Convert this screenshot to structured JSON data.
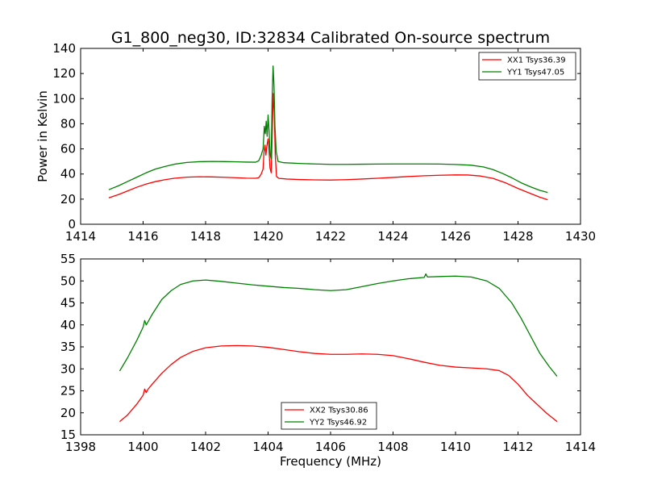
{
  "chart_data": [
    {
      "type": "line",
      "title": "G1_800_neg30, ID:32834 Calibrated On-source spectrum",
      "xlabel": "",
      "ylabel": "Power in Kelvin",
      "xlim": [
        1414,
        1430
      ],
      "ylim": [
        0,
        140
      ],
      "xticks": [
        1414,
        1416,
        1418,
        1420,
        1422,
        1424,
        1426,
        1428,
        1430
      ],
      "yticks": [
        0,
        20,
        40,
        60,
        80,
        100,
        120,
        140
      ],
      "grid": false,
      "legend": "top-right",
      "series": [
        {
          "name": "XX1 Tsys36.39",
          "color": "#ff0000",
          "points": [
            [
              1414.9,
              21
            ],
            [
              1415.2,
              23.5
            ],
            [
              1415.5,
              26.5
            ],
            [
              1415.8,
              29.5
            ],
            [
              1416.1,
              32
            ],
            [
              1416.4,
              34
            ],
            [
              1416.7,
              35.5
            ],
            [
              1417.0,
              36.6
            ],
            [
              1417.4,
              37.5
            ],
            [
              1417.8,
              37.8
            ],
            [
              1418.2,
              37.7
            ],
            [
              1418.6,
              37.4
            ],
            [
              1419.0,
              37
            ],
            [
              1419.3,
              36.7
            ],
            [
              1419.6,
              36.6
            ],
            [
              1419.7,
              37
            ],
            [
              1419.78,
              40
            ],
            [
              1419.84,
              44
            ],
            [
              1419.87,
              58
            ],
            [
              1419.9,
              63
            ],
            [
              1419.93,
              55
            ],
            [
              1419.96,
              62
            ],
            [
              1420.0,
              68
            ],
            [
              1420.03,
              60
            ],
            [
              1420.06,
              45
            ],
            [
              1420.1,
              41
            ],
            [
              1420.14,
              80
            ],
            [
              1420.17,
              104
            ],
            [
              1420.2,
              88
            ],
            [
              1420.23,
              55
            ],
            [
              1420.27,
              38
            ],
            [
              1420.35,
              36.5
            ],
            [
              1420.6,
              36
            ],
            [
              1421.0,
              35.6
            ],
            [
              1421.5,
              35.3
            ],
            [
              1422.0,
              35.2
            ],
            [
              1422.5,
              35.5
            ],
            [
              1423.0,
              36
            ],
            [
              1423.5,
              36.6
            ],
            [
              1424.0,
              37.3
            ],
            [
              1424.5,
              38
            ],
            [
              1425.0,
              38.6
            ],
            [
              1425.5,
              39
            ],
            [
              1426.0,
              39.3
            ],
            [
              1426.4,
              39.2
            ],
            [
              1426.8,
              38.4
            ],
            [
              1427.2,
              36.5
            ],
            [
              1427.6,
              33
            ],
            [
              1428.0,
              28.5
            ],
            [
              1428.4,
              24.5
            ],
            [
              1428.7,
              21.5
            ],
            [
              1428.95,
              19.5
            ]
          ]
        },
        {
          "name": "YY1 Tsys47.05",
          "color": "#008000",
          "points": [
            [
              1414.9,
              27.5
            ],
            [
              1415.2,
              30.5
            ],
            [
              1415.5,
              34
            ],
            [
              1415.8,
              37.5
            ],
            [
              1416.1,
              41
            ],
            [
              1416.4,
              44
            ],
            [
              1416.7,
              46
            ],
            [
              1417.0,
              47.8
            ],
            [
              1417.4,
              49.2
            ],
            [
              1417.8,
              49.8
            ],
            [
              1418.2,
              50
            ],
            [
              1418.6,
              49.9
            ],
            [
              1419.0,
              49.7
            ],
            [
              1419.3,
              49.5
            ],
            [
              1419.6,
              49.4
            ],
            [
              1419.7,
              50.5
            ],
            [
              1419.78,
              55
            ],
            [
              1419.84,
              60
            ],
            [
              1419.88,
              78
            ],
            [
              1419.91,
              72
            ],
            [
              1419.94,
              82
            ],
            [
              1419.97,
              70
            ],
            [
              1420.0,
              87
            ],
            [
              1420.03,
              75
            ],
            [
              1420.07,
              55
            ],
            [
              1420.1,
              52
            ],
            [
              1420.13,
              100
            ],
            [
              1420.16,
              126
            ],
            [
              1420.19,
              110
            ],
            [
              1420.22,
              78
            ],
            [
              1420.26,
              58
            ],
            [
              1420.32,
              50
            ],
            [
              1420.5,
              49
            ],
            [
              1421.0,
              48.4
            ],
            [
              1421.5,
              48
            ],
            [
              1422.0,
              47.7
            ],
            [
              1422.5,
              47.7
            ],
            [
              1423.0,
              47.8
            ],
            [
              1423.5,
              47.9
            ],
            [
              1424.0,
              48
            ],
            [
              1424.5,
              48
            ],
            [
              1425.0,
              48
            ],
            [
              1425.5,
              47.9
            ],
            [
              1426.0,
              47.6
            ],
            [
              1426.5,
              47
            ],
            [
              1426.9,
              45.6
            ],
            [
              1427.2,
              43.5
            ],
            [
              1427.5,
              40.5
            ],
            [
              1427.8,
              37
            ],
            [
              1428.1,
              33
            ],
            [
              1428.4,
              29.8
            ],
            [
              1428.7,
              27
            ],
            [
              1428.95,
              25.3
            ]
          ]
        }
      ]
    },
    {
      "type": "line",
      "title": "",
      "xlabel": "Frequency (MHz)",
      "ylabel": "",
      "xlim": [
        1398,
        1414
      ],
      "ylim": [
        15,
        55
      ],
      "xticks": [
        1398,
        1400,
        1402,
        1404,
        1406,
        1408,
        1410,
        1412,
        1414
      ],
      "yticks": [
        15,
        20,
        25,
        30,
        35,
        40,
        45,
        50,
        55
      ],
      "grid": false,
      "legend": "bottom-center",
      "series": [
        {
          "name": "XX2 Tsys30.86",
          "color": "#ff0000",
          "points": [
            [
              1399.25,
              18
            ],
            [
              1399.5,
              19.5
            ],
            [
              1399.8,
              22
            ],
            [
              1400.0,
              24
            ],
            [
              1400.05,
              25.4
            ],
            [
              1400.1,
              24.6
            ],
            [
              1400.15,
              25.3
            ],
            [
              1400.3,
              26.6
            ],
            [
              1400.6,
              29
            ],
            [
              1400.9,
              31
            ],
            [
              1401.2,
              32.6
            ],
            [
              1401.6,
              34
            ],
            [
              1402.0,
              34.8
            ],
            [
              1402.5,
              35.2
            ],
            [
              1403.0,
              35.3
            ],
            [
              1403.5,
              35.2
            ],
            [
              1404.0,
              34.9
            ],
            [
              1404.5,
              34.4
            ],
            [
              1405.0,
              33.9
            ],
            [
              1405.5,
              33.5
            ],
            [
              1406.0,
              33.3
            ],
            [
              1406.5,
              33.3
            ],
            [
              1407.0,
              33.4
            ],
            [
              1407.5,
              33.3
            ],
            [
              1408.0,
              33
            ],
            [
              1408.5,
              32.3
            ],
            [
              1409.0,
              31.5
            ],
            [
              1409.5,
              30.8
            ],
            [
              1410.0,
              30.4
            ],
            [
              1410.5,
              30.2
            ],
            [
              1411.0,
              30
            ],
            [
              1411.4,
              29.6
            ],
            [
              1411.7,
              28.5
            ],
            [
              1412.0,
              26.5
            ],
            [
              1412.3,
              24
            ],
            [
              1412.6,
              22
            ],
            [
              1412.9,
              20
            ],
            [
              1413.25,
              18
            ]
          ]
        },
        {
          "name": "YY2 Tsys46.92",
          "color": "#008000",
          "points": [
            [
              1399.25,
              29.5
            ],
            [
              1399.5,
              32.5
            ],
            [
              1399.8,
              36.5
            ],
            [
              1400.0,
              39.5
            ],
            [
              1400.05,
              41
            ],
            [
              1400.1,
              40
            ],
            [
              1400.15,
              40.6
            ],
            [
              1400.3,
              42.5
            ],
            [
              1400.6,
              45.8
            ],
            [
              1400.9,
              47.8
            ],
            [
              1401.2,
              49.2
            ],
            [
              1401.6,
              50
            ],
            [
              1402.0,
              50.2
            ],
            [
              1402.5,
              49.9
            ],
            [
              1403.0,
              49.5
            ],
            [
              1403.5,
              49.1
            ],
            [
              1404.0,
              48.8
            ],
            [
              1404.5,
              48.5
            ],
            [
              1405.0,
              48.3
            ],
            [
              1405.5,
              48
            ],
            [
              1406.0,
              47.8
            ],
            [
              1406.5,
              48
            ],
            [
              1407.0,
              48.7
            ],
            [
              1407.5,
              49.4
            ],
            [
              1408.0,
              50
            ],
            [
              1408.5,
              50.5
            ],
            [
              1409.0,
              50.8
            ],
            [
              1409.05,
              51.6
            ],
            [
              1409.1,
              50.9
            ],
            [
              1409.5,
              51
            ],
            [
              1410.0,
              51.1
            ],
            [
              1410.5,
              50.9
            ],
            [
              1411.0,
              50
            ],
            [
              1411.4,
              48.3
            ],
            [
              1411.8,
              45
            ],
            [
              1412.1,
              41.5
            ],
            [
              1412.4,
              37.5
            ],
            [
              1412.7,
              33.5
            ],
            [
              1413.0,
              30.5
            ],
            [
              1413.25,
              28.3
            ]
          ]
        }
      ]
    }
  ]
}
